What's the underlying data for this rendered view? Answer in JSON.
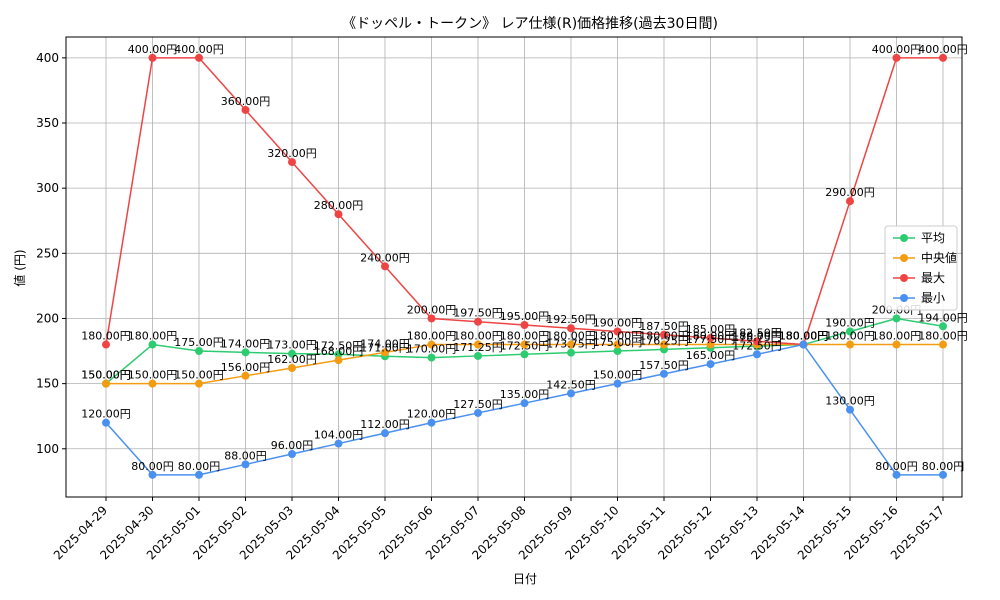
{
  "chart_data": {
    "type": "line",
    "title": "《ドッペル・トークン》 レア仕様(R)価格推移(過去30日間)",
    "xlabel": "日付",
    "ylabel": "値 (円)",
    "value_suffix": "円",
    "categories": [
      "2025-04-29",
      "2025-04-30",
      "2025-05-01",
      "2025-05-02",
      "2025-05-03",
      "2025-05-04",
      "2025-05-05",
      "2025-05-06",
      "2025-05-07",
      "2025-05-08",
      "2025-05-09",
      "2025-05-10",
      "2025-05-11",
      "2025-05-12",
      "2025-05-13",
      "2025-05-14",
      "2025-05-15",
      "2025-05-16",
      "2025-05-17"
    ],
    "ylim": [
      63,
      416
    ],
    "yticks": [
      100,
      150,
      200,
      250,
      300,
      350,
      400
    ],
    "grid": true,
    "legend_position": "center-right",
    "series": [
      {
        "name": "平均",
        "color": "#2ecc71",
        "values": [
          150,
          180,
          175,
          174,
          173,
          172.5,
          171,
          170,
          171.25,
          172.5,
          173.75,
          175,
          176.25,
          177.5,
          178.75,
          180,
          190,
          200,
          194
        ]
      },
      {
        "name": "中央値",
        "color": "#f39c12",
        "values": [
          150,
          150,
          150,
          156,
          162,
          168,
          174,
          180,
          180,
          180,
          180,
          180,
          180,
          180,
          180,
          180,
          180,
          180,
          180
        ]
      },
      {
        "name": "最大",
        "color": "#ef4444",
        "values": [
          180,
          400,
          400,
          360,
          320,
          280,
          240,
          200,
          197.5,
          195,
          192.5,
          190,
          187.5,
          185,
          182.5,
          180,
          290,
          400,
          400
        ]
      },
      {
        "name": "最小",
        "color": "#4a90f0",
        "values": [
          120,
          80,
          80,
          88,
          96,
          104,
          112,
          120,
          127.5,
          135,
          142.5,
          150,
          157.5,
          165,
          172.5,
          180,
          130,
          80,
          80
        ]
      }
    ]
  }
}
